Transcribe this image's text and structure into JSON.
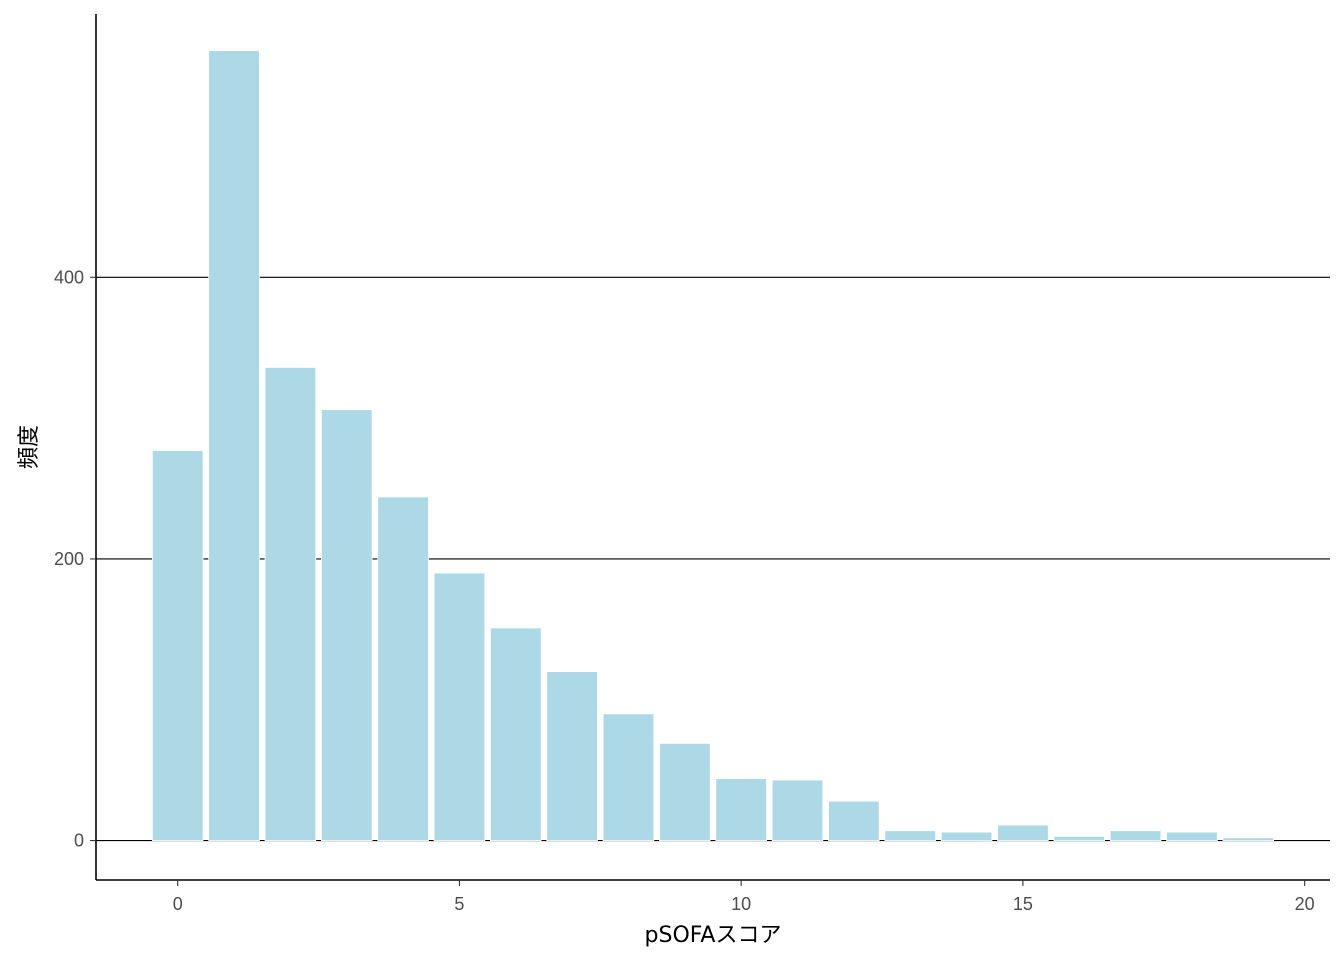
{
  "chart_data": {
    "type": "bar",
    "title": "",
    "xlabel": "pSOFAスコア",
    "ylabel": "頻度",
    "x": [
      0,
      1,
      2,
      3,
      4,
      5,
      6,
      7,
      8,
      9,
      10,
      11,
      12,
      13,
      14,
      15,
      16,
      17,
      18,
      19
    ],
    "values": [
      277,
      561,
      336,
      306,
      244,
      190,
      151,
      120,
      90,
      69,
      44,
      43,
      28,
      7,
      6,
      11,
      3,
      7,
      6,
      2
    ],
    "xlim": [
      -1.45,
      20.45
    ],
    "ylim": [
      -28,
      587
    ],
    "x_ticks": [
      0,
      5,
      10,
      15,
      20
    ],
    "x_tick_labels": [
      "0",
      "5",
      "10",
      "15",
      "20"
    ],
    "y_ticks": [
      0,
      200,
      400
    ],
    "y_tick_labels": [
      "0",
      "200",
      "400"
    ],
    "grid": "horizontal-major",
    "legend": "none",
    "colors": {
      "bar_fill": "#add8e6",
      "bar_outline": "#ffffff",
      "gridline": "#000000",
      "axis": "#000000",
      "tick_label": "#4d4d4d"
    }
  }
}
